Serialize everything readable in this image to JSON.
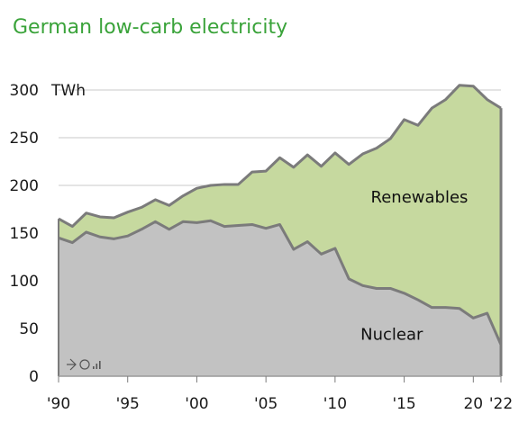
{
  "title": "German low-carb electricity",
  "chart_data": {
    "type": "area",
    "title": "German low-carb electricity",
    "ylabel": "TWh",
    "ylim": [
      0,
      300
    ],
    "xlim": [
      1990,
      2022
    ],
    "y_ticks": [
      0,
      50,
      100,
      150,
      200,
      250,
      300
    ],
    "y_tick_labels": [
      "0",
      "50",
      "100",
      "150",
      "200",
      "250",
      "300"
    ],
    "x_ticks": [
      1990,
      1995,
      2000,
      2005,
      2010,
      2015,
      2020,
      2022
    ],
    "x_tick_labels": [
      "'90",
      "'95",
      "'00",
      "'05",
      "'10",
      "'15",
      "20",
      "'22"
    ],
    "stacked": true,
    "grid": "horizontal",
    "x": [
      1990,
      1991,
      1992,
      1993,
      1994,
      1995,
      1996,
      1997,
      1998,
      1999,
      2000,
      2001,
      2002,
      2003,
      2004,
      2005,
      2006,
      2007,
      2008,
      2009,
      2010,
      2011,
      2012,
      2013,
      2014,
      2015,
      2016,
      2017,
      2018,
      2019,
      2020,
      2021,
      2022
    ],
    "series": [
      {
        "name": "Nuclear",
        "color": "#c2c2c2",
        "values": [
          145,
          140,
          151,
          146,
          144,
          147,
          154,
          162,
          154,
          162,
          161,
          163,
          157,
          158,
          159,
          155,
          159,
          133,
          141,
          128,
          134,
          102,
          95,
          92,
          92,
          87,
          80,
          72,
          72,
          71,
          61,
          66,
          33
        ]
      },
      {
        "name": "Renewables",
        "color": "#c6d99f",
        "values": [
          20,
          17,
          20,
          21,
          22,
          25,
          23,
          23,
          25,
          27,
          36,
          37,
          44,
          43,
          55,
          60,
          70,
          86,
          91,
          92,
          100,
          120,
          138,
          147,
          157,
          182,
          183,
          209,
          218,
          234,
          243,
          224,
          248
        ]
      }
    ],
    "totals": [
      165,
      157,
      171,
      167,
      166,
      172,
      177,
      185,
      179,
      189,
      197,
      200,
      201,
      201,
      214,
      215,
      229,
      219,
      232,
      220,
      234,
      222,
      233,
      239,
      249,
      269,
      263,
      281,
      290,
      305,
      304,
      290,
      281
    ],
    "line_color": "#7b7b7b",
    "label_positions": {
      "Renewables": "upper right area",
      "Nuclear": "lower right area"
    }
  }
}
